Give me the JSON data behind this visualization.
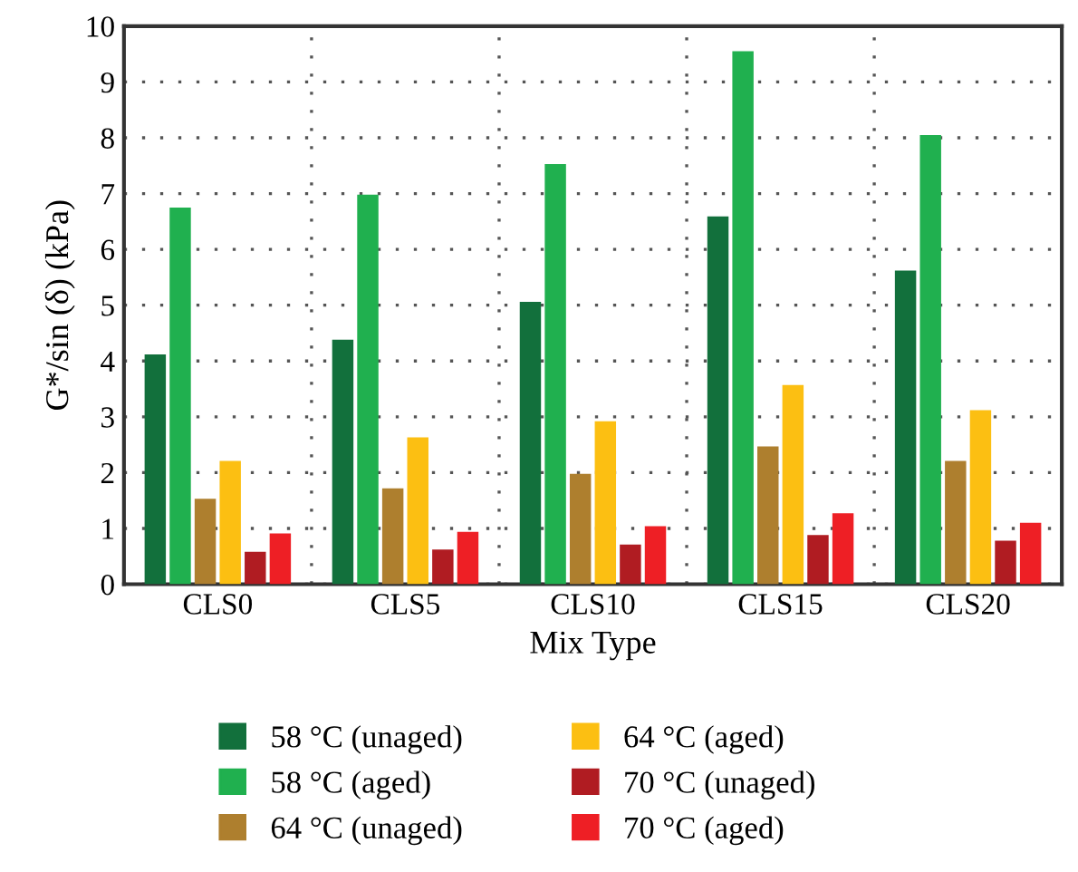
{
  "chart_data": {
    "type": "bar",
    "xlabel": "Mix Type",
    "ylabel": "G*/sin (δ) (kPa)",
    "categories": [
      "CLS0",
      "CLS5",
      "CLS10",
      "CLS15",
      "CLS20"
    ],
    "series": [
      {
        "name": "58 °C (unaged)",
        "color": "#12703c",
        "values": [
          4.12,
          4.38,
          5.06,
          6.59,
          5.62
        ]
      },
      {
        "name": "58 °C (aged)",
        "color": "#20b04f",
        "values": [
          6.75,
          6.98,
          7.53,
          9.55,
          8.05
        ]
      },
      {
        "name": "64 °C (unaged)",
        "color": "#ae7f2e",
        "values": [
          1.53,
          1.72,
          1.98,
          2.47,
          2.21
        ]
      },
      {
        "name": "64 °C (aged)",
        "color": "#fcbf12",
        "values": [
          2.21,
          2.63,
          2.92,
          3.57,
          3.12
        ]
      },
      {
        "name": "70 °C (unaged)",
        "color": "#b01c22",
        "values": [
          0.58,
          0.62,
          0.71,
          0.88,
          0.78
        ]
      },
      {
        "name": "70 °C (aged)",
        "color": "#ee1f25",
        "values": [
          0.91,
          0.94,
          1.04,
          1.27,
          1.1
        ]
      }
    ],
    "ylim": [
      0,
      10
    ],
    "yticks": [
      0,
      1,
      2,
      3,
      4,
      5,
      6,
      7,
      8,
      9,
      10
    ],
    "grid": true,
    "legend": "bottom"
  }
}
